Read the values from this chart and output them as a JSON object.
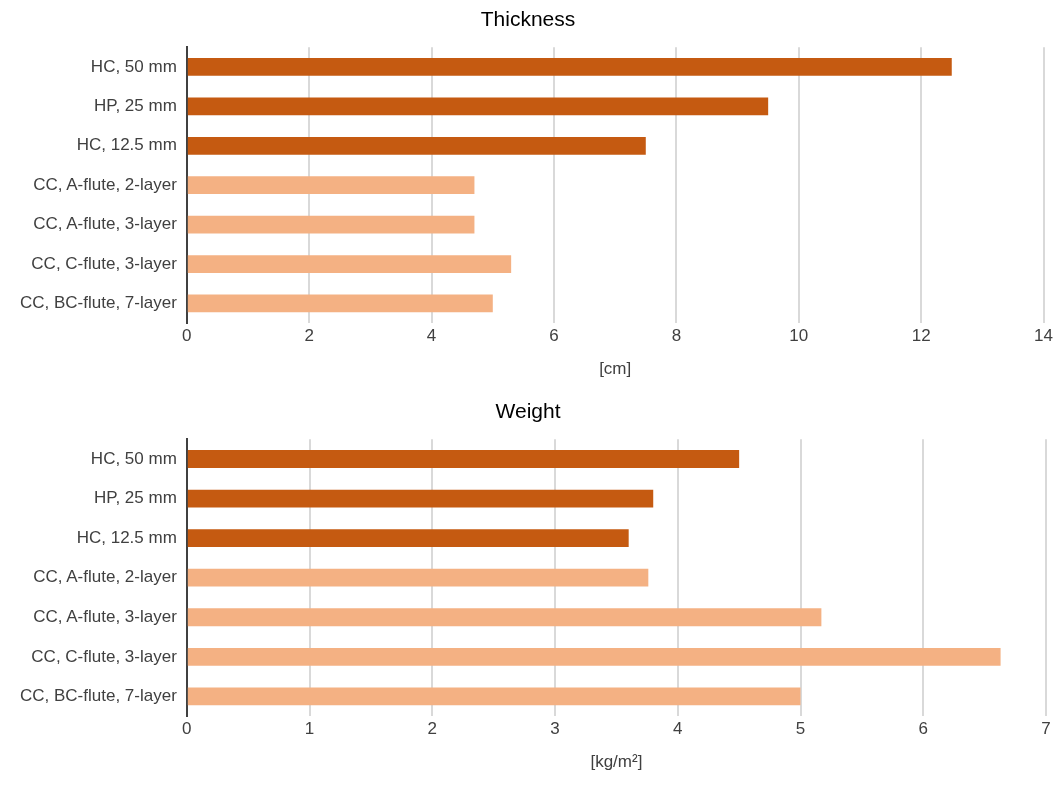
{
  "chart_data": [
    {
      "type": "bar",
      "orientation": "horizontal",
      "title": "Thickness",
      "xlabel": "[cm]",
      "categories": [
        "HC, 50 mm",
        "HP, 25 mm",
        "HC, 12.5 mm",
        "CC, A-flute, 2-layer",
        "CC, A-flute, 3-layer",
        "CC, C-flute, 3-layer",
        "CC, BC-flute, 7-layer"
      ],
      "values": [
        12.5,
        9.5,
        7.5,
        4.7,
        4.7,
        5.3,
        5.0
      ],
      "colors": [
        "#c55a11",
        "#c55a11",
        "#c55a11",
        "#f4b183",
        "#f4b183",
        "#f4b183",
        "#f4b183"
      ],
      "xlim": [
        0,
        14
      ],
      "xticks": [
        0,
        2,
        4,
        6,
        8,
        10,
        12,
        14
      ],
      "grid": "x",
      "legend": false
    },
    {
      "type": "bar",
      "orientation": "horizontal",
      "title": "Weight",
      "xlabel": "[kg/m²]",
      "categories": [
        "HC, 50 mm",
        "HP, 25 mm",
        "HC, 12.5 mm",
        "CC, A-flute, 2-layer",
        "CC, A-flute, 3-layer",
        "CC, C-flute, 3-layer",
        "CC, BC-flute, 7-layer"
      ],
      "values": [
        4.5,
        3.8,
        3.6,
        3.76,
        5.17,
        6.63,
        5.0
      ],
      "colors": [
        "#c55a11",
        "#c55a11",
        "#c55a11",
        "#f4b183",
        "#f4b183",
        "#f4b183",
        "#f4b183"
      ],
      "xlim": [
        0,
        7
      ],
      "xticks": [
        0,
        1,
        2,
        3,
        4,
        5,
        6,
        7
      ],
      "grid": "x",
      "legend": false
    }
  ]
}
